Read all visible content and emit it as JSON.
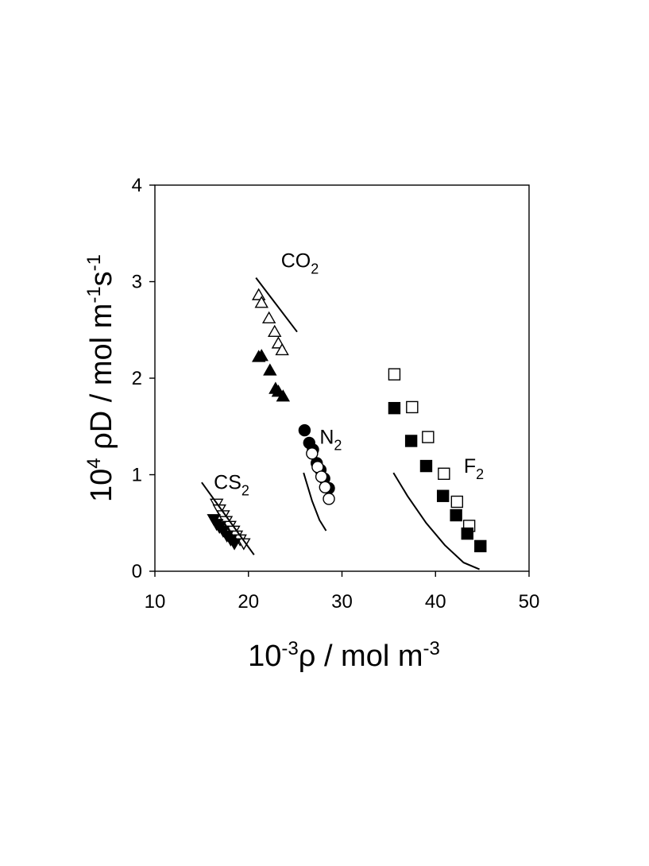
{
  "chart_data": {
    "type": "scatter",
    "title": "",
    "xlim": [
      10,
      50
    ],
    "ylim": [
      0,
      4
    ],
    "x_ticks": [
      10,
      20,
      30,
      40,
      50
    ],
    "y_ticks": [
      0,
      1,
      2,
      3,
      4
    ],
    "xlabel": {
      "base": "10",
      "sup": "-3",
      "rest": "ρ / mol m",
      "unit_sup": "-3"
    },
    "ylabel": {
      "base": "10",
      "sup": "4",
      "p1": " ρD / mol m",
      "sup2": "-1",
      "p2": "s",
      "sup3": "-1"
    },
    "grid": false,
    "legend": "none",
    "color": "#000000",
    "annotations": [
      {
        "id": "co2",
        "base": "CO",
        "sub": "2",
        "x": 25.5,
        "y": 3.15
      },
      {
        "id": "n2",
        "base": "N",
        "sub": "2",
        "x": 28.8,
        "y": 1.32
      },
      {
        "id": "cs2",
        "base": "CS",
        "sub": "2",
        "x": 18.2,
        "y": 0.85
      },
      {
        "id": "f2",
        "base": "F",
        "sub": "2",
        "x": 44.1,
        "y": 1.02
      }
    ],
    "series": [
      {
        "marker": "triangle-up-open",
        "points": [
          [
            21.1,
            2.86
          ],
          [
            21.4,
            2.78
          ],
          [
            22.2,
            2.62
          ],
          [
            22.8,
            2.48
          ],
          [
            23.2,
            2.36
          ],
          [
            23.6,
            2.29
          ]
        ]
      },
      {
        "marker": "triangle-up-filled",
        "points": [
          [
            21.1,
            2.22
          ],
          [
            21.4,
            2.23
          ],
          [
            22.3,
            2.08
          ],
          [
            22.9,
            1.89
          ],
          [
            23.2,
            1.86
          ],
          [
            23.7,
            1.81
          ]
        ]
      },
      {
        "marker": "line",
        "points": [
          [
            20.8,
            3.04
          ],
          [
            25.2,
            2.48
          ]
        ]
      },
      {
        "marker": "circle-filled",
        "points": [
          [
            26.0,
            1.46
          ],
          [
            26.5,
            1.33
          ],
          [
            26.9,
            1.26
          ],
          [
            27.3,
            1.12
          ],
          [
            27.7,
            1.05
          ],
          [
            28.1,
            0.96
          ],
          [
            28.6,
            0.86
          ]
        ]
      },
      {
        "marker": "circle-open",
        "points": [
          [
            26.8,
            1.22
          ],
          [
            27.4,
            1.08
          ],
          [
            27.8,
            0.98
          ],
          [
            28.2,
            0.87
          ],
          [
            28.6,
            0.75
          ]
        ]
      },
      {
        "marker": "line",
        "points": [
          [
            25.9,
            1.02
          ],
          [
            26.8,
            0.73
          ],
          [
            27.6,
            0.53
          ],
          [
            28.3,
            0.42
          ]
        ]
      },
      {
        "marker": "square-open",
        "points": [
          [
            35.6,
            2.04
          ],
          [
            37.5,
            1.7
          ],
          [
            39.2,
            1.39
          ],
          [
            40.9,
            1.01
          ],
          [
            42.3,
            0.72
          ],
          [
            43.6,
            0.47
          ]
        ]
      },
      {
        "marker": "square-filled",
        "points": [
          [
            35.6,
            1.69
          ],
          [
            37.4,
            1.35
          ],
          [
            39.0,
            1.09
          ],
          [
            40.8,
            0.78
          ],
          [
            42.2,
            0.58
          ],
          [
            43.4,
            0.39
          ],
          [
            44.8,
            0.26
          ]
        ]
      },
      {
        "marker": "line",
        "points": [
          [
            35.5,
            1.02
          ],
          [
            37.0,
            0.78
          ],
          [
            39.0,
            0.5
          ],
          [
            41.0,
            0.27
          ],
          [
            43.0,
            0.09
          ],
          [
            44.7,
            0.02
          ]
        ]
      },
      {
        "marker": "triangle-down-open",
        "points": [
          [
            16.6,
            0.7
          ],
          [
            16.9,
            0.64
          ],
          [
            17.3,
            0.58
          ],
          [
            17.6,
            0.52
          ],
          [
            18.0,
            0.47
          ],
          [
            18.4,
            0.42
          ],
          [
            18.7,
            0.37
          ],
          [
            19.1,
            0.33
          ],
          [
            19.5,
            0.29
          ]
        ]
      },
      {
        "marker": "triangle-down-filled",
        "points": [
          [
            16.3,
            0.54
          ],
          [
            16.6,
            0.49
          ],
          [
            16.9,
            0.46
          ],
          [
            17.3,
            0.42
          ],
          [
            17.7,
            0.37
          ],
          [
            18.1,
            0.33
          ],
          [
            18.5,
            0.29
          ]
        ]
      },
      {
        "marker": "line",
        "points": [
          [
            15.0,
            0.92
          ],
          [
            20.6,
            0.17
          ]
        ]
      }
    ]
  }
}
